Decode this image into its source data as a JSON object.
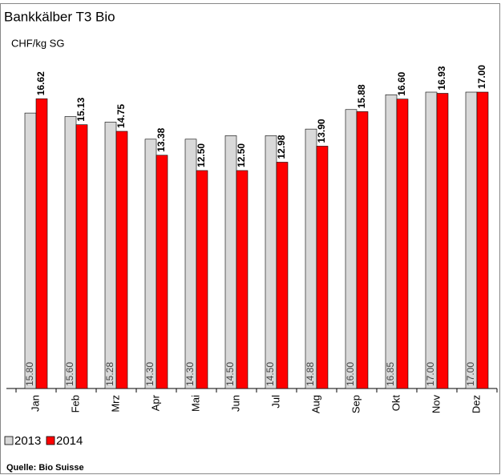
{
  "chart_data": {
    "type": "bar",
    "title": "Bankkälber T3 Bio",
    "subtitle": "CHF/kg SG",
    "categories": [
      "Jan",
      "Feb",
      "Mrz",
      "Apr",
      "Mai",
      "Jun",
      "Jul",
      "Aug",
      "Sep",
      "Okt",
      "Nov",
      "Dez"
    ],
    "series": [
      {
        "name": "2013",
        "color": "#d9d9d9",
        "values": [
          15.8,
          15.6,
          15.28,
          14.3,
          14.3,
          14.5,
          14.5,
          14.88,
          16,
          16.85,
          17,
          17
        ],
        "value_labels": [
          "15.80",
          "15.60",
          "15.28",
          "14.30",
          "14.30",
          "14.50",
          "14.50",
          "14.88",
          "16.00",
          "16.85",
          "17.00",
          "17.00"
        ]
      },
      {
        "name": "2014",
        "color": "#ff0000",
        "values": [
          16.62,
          15.13,
          14.75,
          13.38,
          12.5,
          12.5,
          12.98,
          13.9,
          15.88,
          16.6,
          16.93,
          17
        ],
        "value_labels": [
          "16.62",
          "15.13",
          "14.75",
          "13.38",
          "12.50",
          "12.50",
          "12.98",
          "13.90",
          "15.88",
          "16.60",
          "16.93",
          "17.00"
        ]
      }
    ],
    "ylim": [
      0,
      17
    ],
    "source": "Quelle: Bio Suisse"
  }
}
